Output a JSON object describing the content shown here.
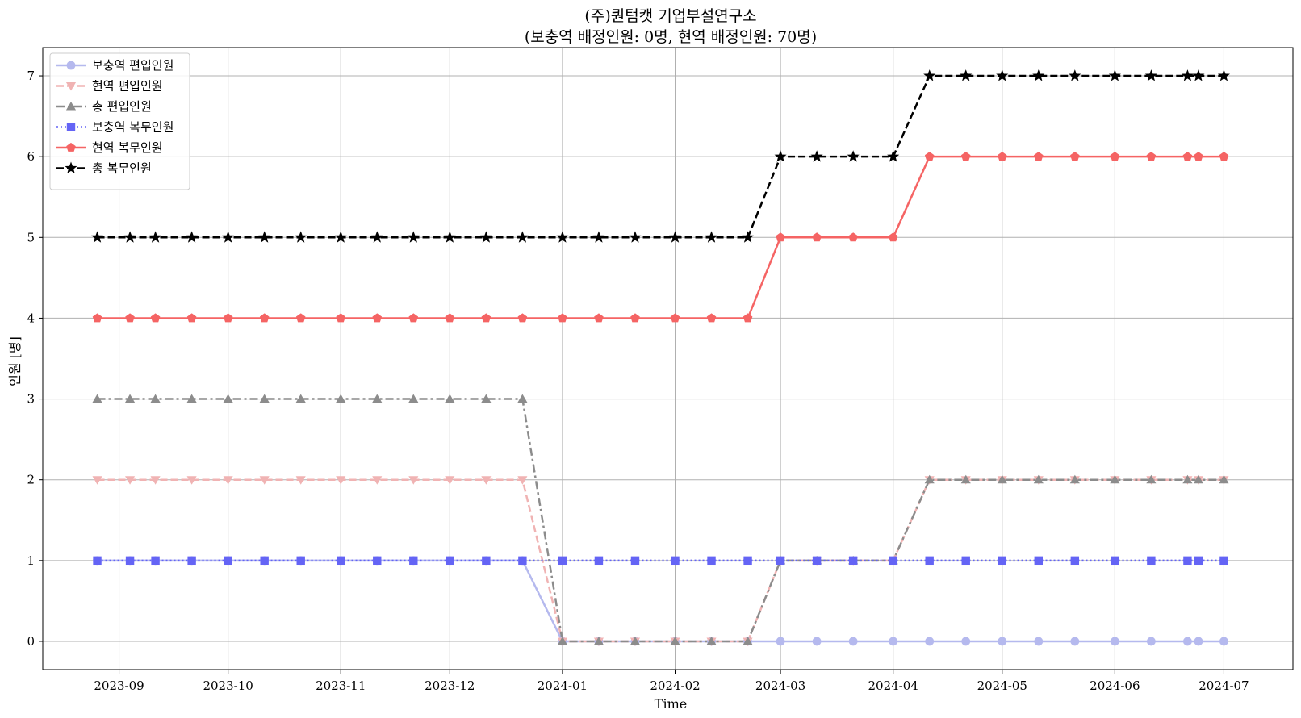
{
  "chart_data": {
    "type": "line",
    "title": [
      "(주)퀀텀캣 기업부설연구소",
      "(보충역 배정인원: 0명, 현역 배정인원: 70명)"
    ],
    "xlabel": "Time",
    "ylabel": "인원 [명]",
    "ylim": [
      -0.35,
      7.35
    ],
    "xlim": [
      "2023-08-11",
      "2024-07-20"
    ],
    "grid": true,
    "legend_position": "top-left",
    "x_ticks": [
      "2023-09-01",
      "2023-10-01",
      "2023-11-01",
      "2023-12-01",
      "2024-01-01",
      "2024-02-01",
      "2024-03-01",
      "2024-04-01",
      "2024-05-01",
      "2024-06-01",
      "2024-07-01"
    ],
    "x_tick_labels": [
      "2023-09",
      "2023-10",
      "2023-11",
      "2023-12",
      "2024-01",
      "2024-02",
      "2024-03",
      "2024-04",
      "2024-05",
      "2024-06",
      "2024-07"
    ],
    "y_ticks": [
      0,
      1,
      2,
      3,
      4,
      5,
      6,
      7
    ],
    "x": [
      "2023-08-26",
      "2023-09-04",
      "2023-09-11",
      "2023-09-21",
      "2023-10-01",
      "2023-10-11",
      "2023-10-21",
      "2023-11-01",
      "2023-11-11",
      "2023-11-21",
      "2023-12-01",
      "2023-12-11",
      "2023-12-21",
      "2024-01-01",
      "2024-01-11",
      "2024-01-21",
      "2024-02-01",
      "2024-02-11",
      "2024-02-21",
      "2024-03-01",
      "2024-03-11",
      "2024-03-21",
      "2024-04-01",
      "2024-04-11",
      "2024-04-21",
      "2024-05-01",
      "2024-05-11",
      "2024-05-21",
      "2024-06-01",
      "2024-06-11",
      "2024-06-21",
      "2024-06-24",
      "2024-07-01"
    ],
    "series": [
      {
        "name": "보충역 편입인원",
        "color": "#b5b9ee",
        "dash": "solid",
        "marker": "circle",
        "values": [
          1,
          1,
          1,
          1,
          1,
          1,
          1,
          1,
          1,
          1,
          1,
          1,
          1,
          0,
          0,
          0,
          0,
          0,
          0,
          0,
          0,
          0,
          0,
          0,
          0,
          0,
          0,
          0,
          0,
          0,
          0,
          0,
          0
        ]
      },
      {
        "name": "현역 편입인원",
        "color": "#f0b3b3",
        "dash": "dashed",
        "marker": "triangle-down",
        "values": [
          2,
          2,
          2,
          2,
          2,
          2,
          2,
          2,
          2,
          2,
          2,
          2,
          2,
          0,
          0,
          0,
          0,
          0,
          0,
          1,
          1,
          1,
          1,
          2,
          2,
          2,
          2,
          2,
          2,
          2,
          2,
          2,
          2
        ]
      },
      {
        "name": "총 편입인원",
        "color": "#8c8c8c",
        "dash": "dashdot",
        "marker": "triangle-up",
        "values": [
          3,
          3,
          3,
          3,
          3,
          3,
          3,
          3,
          3,
          3,
          3,
          3,
          3,
          0,
          0,
          0,
          0,
          0,
          0,
          1,
          1,
          1,
          1,
          2,
          2,
          2,
          2,
          2,
          2,
          2,
          2,
          2,
          2
        ]
      },
      {
        "name": "보충역 복무인원",
        "color": "#6464f5",
        "dash": "dotted",
        "marker": "square",
        "values": [
          1,
          1,
          1,
          1,
          1,
          1,
          1,
          1,
          1,
          1,
          1,
          1,
          1,
          1,
          1,
          1,
          1,
          1,
          1,
          1,
          1,
          1,
          1,
          1,
          1,
          1,
          1,
          1,
          1,
          1,
          1,
          1,
          1
        ]
      },
      {
        "name": "현역 복무인원",
        "color": "#f56464",
        "dash": "solid",
        "marker": "pentagon",
        "values": [
          4,
          4,
          4,
          4,
          4,
          4,
          4,
          4,
          4,
          4,
          4,
          4,
          4,
          4,
          4,
          4,
          4,
          4,
          4,
          5,
          5,
          5,
          5,
          6,
          6,
          6,
          6,
          6,
          6,
          6,
          6,
          6,
          6
        ]
      },
      {
        "name": "총 복무인원",
        "color": "#000000",
        "dash": "dashed",
        "marker": "star",
        "values": [
          5,
          5,
          5,
          5,
          5,
          5,
          5,
          5,
          5,
          5,
          5,
          5,
          5,
          5,
          5,
          5,
          5,
          5,
          5,
          6,
          6,
          6,
          6,
          7,
          7,
          7,
          7,
          7,
          7,
          7,
          7,
          7,
          7
        ]
      }
    ]
  }
}
